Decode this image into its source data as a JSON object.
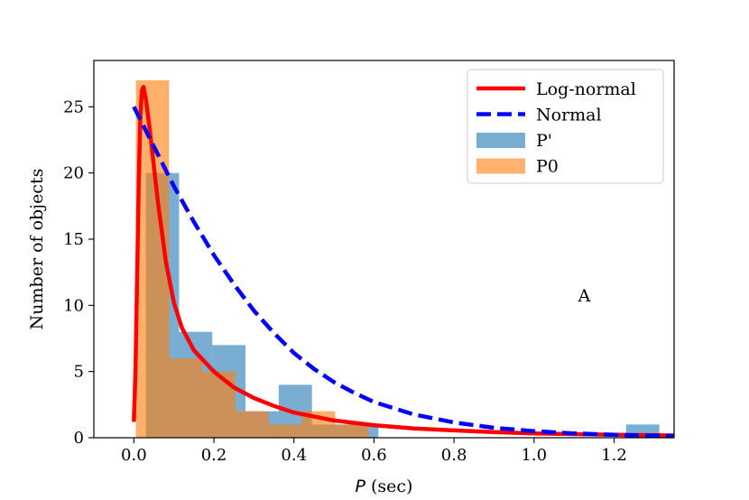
{
  "chart_data": {
    "type": "bar",
    "xlabel_symbol": "P",
    "xlabel_unit": " (sec)",
    "ylabel": "Number of objects",
    "xlim": [
      -0.1,
      1.35
    ],
    "ylim": [
      0,
      28.5
    ],
    "xticks": [
      0.0,
      0.2,
      0.4,
      0.6,
      0.8,
      1.0,
      1.2
    ],
    "xtick_labels": [
      "0.0",
      "0.2",
      "0.4",
      "0.6",
      "0.8",
      "1.0",
      "1.2"
    ],
    "yticks": [
      0,
      5,
      10,
      15,
      20,
      25
    ],
    "ytick_labels": [
      "0",
      "5",
      "10",
      "15",
      "20",
      "25"
    ],
    "histograms": [
      {
        "name": "P'",
        "color": "#1f77b4",
        "bin_width": 0.083,
        "bins": [
          {
            "x0": 0.03,
            "count": 20
          },
          {
            "x0": 0.113,
            "count": 8
          },
          {
            "x0": 0.196,
            "count": 7
          },
          {
            "x0": 0.279,
            "count": 2
          },
          {
            "x0": 0.362,
            "count": 4
          },
          {
            "x0": 0.445,
            "count": 1
          },
          {
            "x0": 0.528,
            "count": 1
          },
          {
            "x0": 1.23,
            "count": 1
          }
        ]
      },
      {
        "name": "P0",
        "color": "#ff7f0e",
        "bin_width": 0.083,
        "bins": [
          {
            "x0": 0.005,
            "count": 27
          },
          {
            "x0": 0.088,
            "count": 6
          },
          {
            "x0": 0.171,
            "count": 5
          },
          {
            "x0": 0.254,
            "count": 2
          },
          {
            "x0": 0.337,
            "count": 1
          },
          {
            "x0": 0.42,
            "count": 2
          },
          {
            "x0": 0.503,
            "count": 1
          }
        ]
      }
    ],
    "curves": [
      {
        "name": "Log-normal",
        "color": "#ff0000",
        "style": "solid",
        "points": [
          [
            0.0,
            1.2
          ],
          [
            0.004,
            5
          ],
          [
            0.008,
            12
          ],
          [
            0.012,
            19
          ],
          [
            0.016,
            24
          ],
          [
            0.02,
            26.2
          ],
          [
            0.024,
            26.5
          ],
          [
            0.03,
            25.6
          ],
          [
            0.04,
            23.2
          ],
          [
            0.05,
            20.5
          ],
          [
            0.06,
            17.8
          ],
          [
            0.08,
            13.3
          ],
          [
            0.1,
            10.2
          ],
          [
            0.12,
            8.3
          ],
          [
            0.15,
            6.6
          ],
          [
            0.2,
            5.0
          ],
          [
            0.25,
            3.8
          ],
          [
            0.3,
            3.0
          ],
          [
            0.35,
            2.4
          ],
          [
            0.4,
            1.9
          ],
          [
            0.5,
            1.3
          ],
          [
            0.6,
            0.95
          ],
          [
            0.7,
            0.7
          ],
          [
            0.8,
            0.55
          ],
          [
            0.9,
            0.42
          ],
          [
            1.0,
            0.33
          ],
          [
            1.1,
            0.27
          ],
          [
            1.2,
            0.22
          ],
          [
            1.35,
            0.17
          ]
        ]
      },
      {
        "name": "Normal",
        "color": "#0000ff",
        "style": "dashed",
        "points": [
          [
            0.0,
            25.0
          ],
          [
            0.05,
            22.0
          ],
          [
            0.1,
            19.0
          ],
          [
            0.15,
            16.3
          ],
          [
            0.2,
            13.8
          ],
          [
            0.25,
            11.6
          ],
          [
            0.3,
            9.6
          ],
          [
            0.35,
            7.9
          ],
          [
            0.4,
            6.4
          ],
          [
            0.45,
            5.2
          ],
          [
            0.5,
            4.2
          ],
          [
            0.55,
            3.4
          ],
          [
            0.6,
            2.7
          ],
          [
            0.7,
            1.75
          ],
          [
            0.8,
            1.15
          ],
          [
            0.9,
            0.75
          ],
          [
            1.0,
            0.5
          ],
          [
            1.1,
            0.33
          ],
          [
            1.2,
            0.22
          ],
          [
            1.35,
            0.12
          ]
        ]
      }
    ],
    "legend": {
      "placement": "top-right",
      "entries": [
        {
          "label": "Log-normal",
          "kind": "line",
          "color": "#ff0000",
          "style": "solid"
        },
        {
          "label": "Normal",
          "kind": "line",
          "color": "#0000ff",
          "style": "dashed"
        },
        {
          "label": "P'",
          "kind": "patch",
          "color": "#1f77b4"
        },
        {
          "label": "P0",
          "kind": "patch",
          "color": "#ff7f0e"
        }
      ]
    },
    "annotations": [
      {
        "text": "A",
        "x": 1.11,
        "y": 10.3
      }
    ]
  }
}
